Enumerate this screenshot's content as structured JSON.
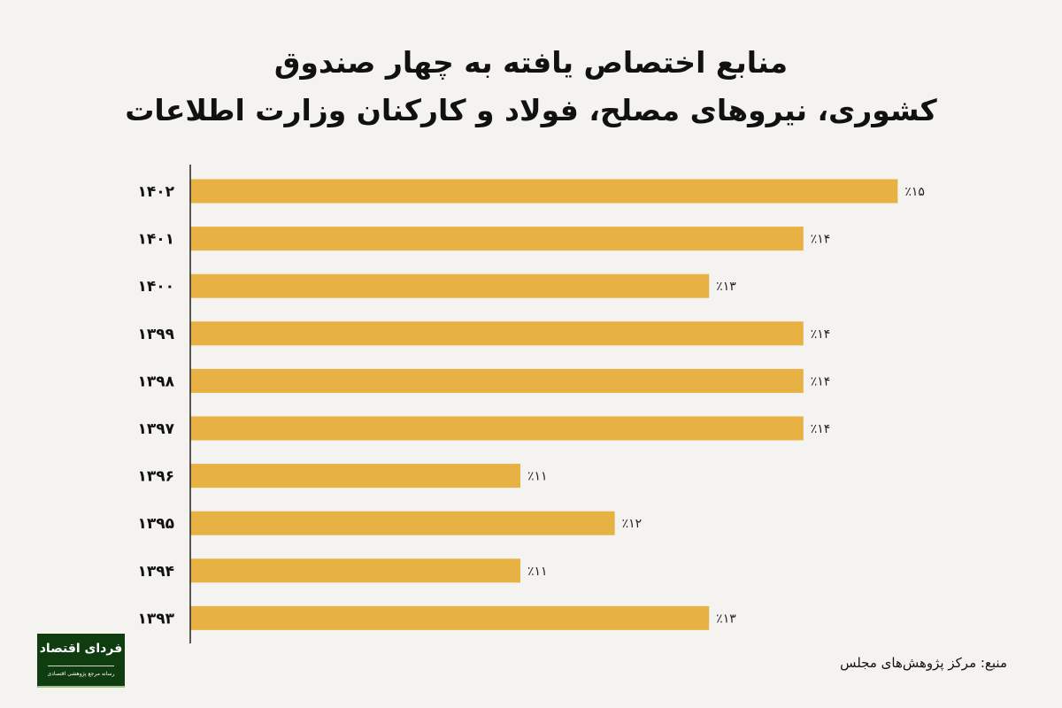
{
  "title_line1": "منابع اختصاص یافته به چهار صندوق",
  "title_line2": "کشوری، نیروهای مصلح، فولاد و کارکنان وزارت اطلاعات",
  "source": "منبع: مرکز پژوهش‌های مجلس",
  "logo": {
    "text": "فردای اقتصاد",
    "subtext": "رسانه مرجع پژوهشی اقتصادی"
  },
  "colors": {
    "bar": "#e8b143",
    "background": "#f4f3ef",
    "logo": "#0f3d0f"
  },
  "chart_data": {
    "type": "bar",
    "orientation": "horizontal",
    "title": "منابع اختصاص یافته به چهار صندوق کشوری، نیروهای مصلح، فولاد و کارکنان وزارت اطلاعات",
    "categories": [
      "۱۴۰۲",
      "۱۴۰۱",
      "۱۴۰۰",
      "۱۳۹۹",
      "۱۳۹۸",
      "۱۳۹۷",
      "۱۳۹۶",
      "۱۳۹۵",
      "۱۳۹۴",
      "۱۳۹۳"
    ],
    "values": [
      15,
      14,
      13,
      14,
      14,
      14,
      11,
      12,
      11,
      13
    ],
    "data_labels": [
      "٪۱۵",
      "٪۱۴",
      "٪۱۳",
      "٪۱۴",
      "٪۱۴",
      "٪۱۴",
      "٪۱۱",
      "٪۱۲",
      "٪۱۱",
      "٪۱۳"
    ],
    "unit": "%",
    "xlim": [
      7.5,
      15.1
    ],
    "grid": false,
    "legend": "none"
  }
}
